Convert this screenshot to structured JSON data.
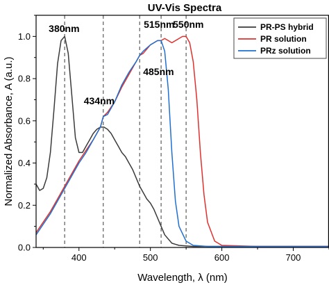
{
  "chart_data": {
    "type": "line",
    "title": "UV-Vis Spectra",
    "xlabel": "Wavelength, λ (nm)",
    "ylabel": "Normalized Absorbance, A (a.u.)",
    "xlim": [
      340,
      750
    ],
    "ylim": [
      0,
      1.1
    ],
    "xticks": [
      400,
      500,
      600,
      700
    ],
    "yticks": [
      0.0,
      0.2,
      0.4,
      0.6,
      0.8,
      1.0
    ],
    "xtick_labels": [
      "400",
      "500",
      "600",
      "700"
    ],
    "ytick_labels": [
      "0.0",
      "0.2",
      "0.4",
      "0.6",
      "0.8",
      "1.0"
    ],
    "grid": false,
    "legend_position": "top-right",
    "markers": [
      {
        "x": 380,
        "label": "380nm"
      },
      {
        "x": 434,
        "label": "434nm"
      },
      {
        "x": 485,
        "label": "485nm"
      },
      {
        "x": 515,
        "label": "515nm"
      },
      {
        "x": 550,
        "label": "550nm"
      }
    ],
    "series": [
      {
        "name": "PR-PS hybrid",
        "color": "#3a3a3a",
        "x": [
          340,
          345,
          350,
          355,
          360,
          365,
          370,
          375,
          380,
          385,
          390,
          395,
          400,
          405,
          410,
          415,
          420,
          425,
          430,
          435,
          440,
          445,
          450,
          455,
          460,
          465,
          470,
          475,
          480,
          485,
          490,
          495,
          500,
          505,
          510,
          515,
          520,
          530,
          540,
          560,
          600,
          650,
          700,
          750
        ],
        "y": [
          0.3,
          0.27,
          0.28,
          0.33,
          0.45,
          0.65,
          0.87,
          0.98,
          1.0,
          0.92,
          0.72,
          0.52,
          0.45,
          0.45,
          0.48,
          0.51,
          0.54,
          0.56,
          0.57,
          0.57,
          0.56,
          0.54,
          0.51,
          0.48,
          0.45,
          0.43,
          0.4,
          0.37,
          0.33,
          0.29,
          0.26,
          0.23,
          0.21,
          0.18,
          0.14,
          0.1,
          0.06,
          0.02,
          0.01,
          0.005,
          0.005,
          0.005,
          0.005,
          0.005
        ]
      },
      {
        "name": "PR solution",
        "color": "#e0302d",
        "x": [
          340,
          350,
          360,
          370,
          380,
          390,
          400,
          410,
          420,
          430,
          434,
          440,
          450,
          460,
          470,
          480,
          485,
          490,
          500,
          510,
          515,
          520,
          525,
          530,
          540,
          545,
          550,
          555,
          560,
          565,
          570,
          575,
          580,
          590,
          600,
          650,
          700,
          750
        ],
        "y": [
          0.07,
          0.12,
          0.17,
          0.23,
          0.29,
          0.35,
          0.41,
          0.46,
          0.51,
          0.57,
          0.62,
          0.64,
          0.69,
          0.76,
          0.82,
          0.88,
          0.91,
          0.92,
          0.96,
          0.98,
          0.98,
          0.99,
          0.98,
          0.97,
          0.99,
          1.0,
          1.0,
          0.97,
          0.88,
          0.7,
          0.45,
          0.25,
          0.12,
          0.03,
          0.01,
          0.005,
          0.005,
          0.005
        ]
      },
      {
        "name": "PRz solution",
        "color": "#1f6fd1",
        "x": [
          340,
          350,
          360,
          370,
          380,
          390,
          400,
          410,
          420,
          430,
          434,
          440,
          450,
          460,
          470,
          480,
          485,
          490,
          500,
          505,
          510,
          515,
          520,
          525,
          530,
          535,
          540,
          550,
          560,
          580,
          600,
          650,
          700,
          750
        ],
        "y": [
          0.06,
          0.11,
          0.16,
          0.22,
          0.28,
          0.34,
          0.4,
          0.45,
          0.51,
          0.57,
          0.62,
          0.63,
          0.69,
          0.77,
          0.83,
          0.88,
          0.91,
          0.93,
          0.96,
          0.97,
          0.98,
          0.98,
          0.93,
          0.75,
          0.45,
          0.22,
          0.1,
          0.03,
          0.01,
          0.005,
          0.005,
          0.005,
          0.005,
          0.005
        ]
      }
    ]
  }
}
